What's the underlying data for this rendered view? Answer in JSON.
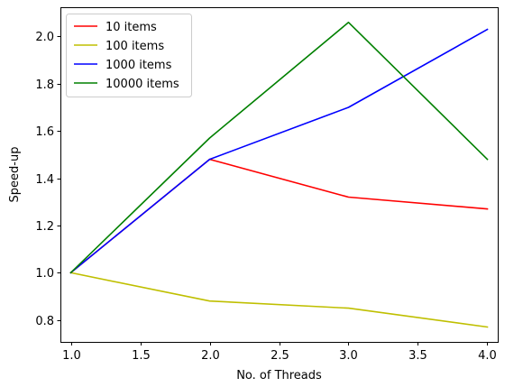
{
  "chart_data": {
    "type": "line",
    "title": "",
    "xlabel": "No. of Threads",
    "ylabel": "Speed-up",
    "x": [
      1.0,
      2.0,
      3.0,
      4.0
    ],
    "xlim": [
      0.925,
      4.075
    ],
    "ylim": [
      0.707,
      2.124
    ],
    "xticks": [
      1.0,
      1.5,
      2.0,
      2.5,
      3.0,
      3.5,
      4.0
    ],
    "xtick_labels": [
      "1.0",
      "1.5",
      "2.0",
      "2.5",
      "3.0",
      "3.5",
      "4.0"
    ],
    "yticks": [
      0.8,
      1.0,
      1.2,
      1.4,
      1.6,
      1.8,
      2.0
    ],
    "ytick_labels": [
      "0.8",
      "1.0",
      "1.2",
      "1.4",
      "1.6",
      "1.8",
      "2.0"
    ],
    "grid": false,
    "legend_position": "top-left",
    "series": [
      {
        "name": "10 items",
        "color": "#ff0000",
        "values": [
          1.0,
          1.48,
          1.32,
          1.27
        ]
      },
      {
        "name": "100 items",
        "color": "#bfbf00",
        "values": [
          1.0,
          0.88,
          0.85,
          0.77
        ]
      },
      {
        "name": "1000 items",
        "color": "#0000ff",
        "values": [
          1.0,
          1.48,
          1.7,
          2.03
        ]
      },
      {
        "name": "10000 items",
        "color": "#008000",
        "values": [
          1.0,
          1.57,
          2.06,
          1.48
        ]
      }
    ]
  }
}
